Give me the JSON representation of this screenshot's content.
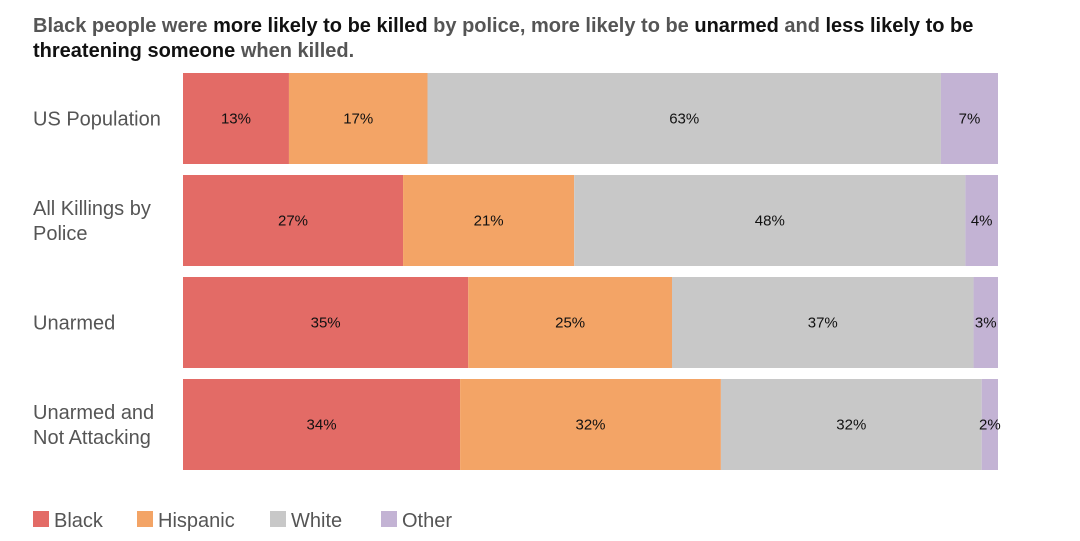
{
  "chart_data": {
    "type": "bar",
    "orientation": "horizontal",
    "stacked": true,
    "normalized": true,
    "title_parts": [
      {
        "text": "Black people were ",
        "bold": false
      },
      {
        "text": "more likely to be killed",
        "bold": true
      },
      {
        "text": " by police, more likely to be ",
        "bold": false
      },
      {
        "text": "unarmed",
        "bold": true
      },
      {
        "text": " and ",
        "bold": false
      },
      {
        "text": "less likely to be threatening someone",
        "bold": true
      },
      {
        "text": " when killed.",
        "bold": false
      }
    ],
    "categories": [
      {
        "lines": [
          "US Population"
        ]
      },
      {
        "lines": [
          "All Killings by",
          "Police"
        ]
      },
      {
        "lines": [
          "Unarmed"
        ]
      },
      {
        "lines": [
          "Unarmed and",
          "Not Attacking"
        ]
      }
    ],
    "series": [
      {
        "name": "Black",
        "color": "#e36b66",
        "values": [
          13,
          27,
          35,
          34
        ],
        "labels": [
          "13%",
          "27%",
          "35%",
          "34%"
        ]
      },
      {
        "name": "Hispanic",
        "color": "#f3a466",
        "values": [
          17,
          21,
          25,
          32
        ],
        "labels": [
          "17%",
          "21%",
          "25%",
          "32%"
        ]
      },
      {
        "name": "White",
        "color": "#c8c8c8",
        "values": [
          63,
          48,
          37,
          32
        ],
        "labels": [
          "63%",
          "48%",
          "37%",
          "32%"
        ]
      },
      {
        "name": "Other",
        "color": "#c3b3d4",
        "values": [
          7,
          4,
          3,
          2
        ],
        "labels": [
          "7%",
          "4%",
          "3%",
          "2%"
        ]
      }
    ],
    "xlim": [
      0,
      100
    ],
    "legend_position": "bottom-left",
    "grid": false
  }
}
